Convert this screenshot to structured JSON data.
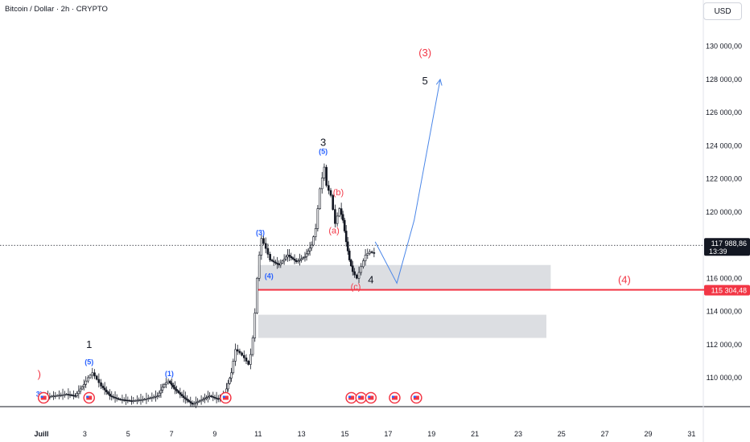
{
  "header": {
    "symbol_title": "Bitcoin / Dollar · 2h · CRYPTO",
    "currency_button": "USD"
  },
  "chart_data": {
    "type": "candlestick",
    "y_ticks": [
      "110 000,00",
      "112 000,00",
      "114 000,00",
      "116 000,00",
      "118 000,00",
      "120 000,00",
      "122 000,00",
      "124 000,00",
      "126 000,00",
      "128 000,00",
      "130 000,00"
    ],
    "y_tick_values": [
      110000,
      112000,
      114000,
      116000,
      118000,
      120000,
      122000,
      124000,
      126000,
      128000,
      130000
    ],
    "x_ticks": [
      "Juill",
      "3",
      "5",
      "7",
      "9",
      "11",
      "13",
      "15",
      "17",
      "19",
      "21",
      "23",
      "25",
      "27",
      "29",
      "31"
    ],
    "x_tick_days": [
      1,
      3,
      5,
      7,
      9,
      11,
      13,
      15,
      17,
      19,
      21,
      23,
      25,
      27,
      29,
      31
    ],
    "current_price": {
      "label": "117 988,86",
      "countdown": "13:39",
      "value": 117988.86
    },
    "support_level": {
      "label": "115 304,48",
      "value": 115304.48,
      "color": "#f23645"
    },
    "price_path": [
      [
        1.0,
        108800
      ],
      [
        1.6,
        108900
      ],
      [
        2.2,
        109000
      ],
      [
        2.6,
        108900
      ],
      [
        3.0,
        109600
      ],
      [
        3.2,
        110000
      ],
      [
        3.4,
        110300
      ],
      [
        3.6,
        109900
      ],
      [
        3.8,
        109500
      ],
      [
        4.2,
        108900
      ],
      [
        4.6,
        108700
      ],
      [
        5.2,
        108600
      ],
      [
        5.8,
        108700
      ],
      [
        6.4,
        108900
      ],
      [
        6.7,
        109600
      ],
      [
        6.9,
        109800
      ],
      [
        7.2,
        109300
      ],
      [
        7.6,
        108800
      ],
      [
        8.0,
        108400
      ],
      [
        8.5,
        108700
      ],
      [
        8.8,
        108900
      ],
      [
        9.2,
        108700
      ],
      [
        9.5,
        109000
      ],
      [
        9.8,
        110300
      ],
      [
        10.0,
        111700
      ],
      [
        10.2,
        111500
      ],
      [
        10.4,
        111200
      ],
      [
        10.6,
        110800
      ],
      [
        10.7,
        111400
      ],
      [
        10.8,
        112400
      ],
      [
        10.9,
        113900
      ],
      [
        11.0,
        116000
      ],
      [
        11.1,
        117400
      ],
      [
        11.2,
        118400
      ],
      [
        11.4,
        117800
      ],
      [
        11.6,
        117100
      ],
      [
        12.0,
        116800
      ],
      [
        12.4,
        117400
      ],
      [
        12.8,
        117000
      ],
      [
        13.2,
        117300
      ],
      [
        13.5,
        118000
      ],
      [
        13.7,
        119000
      ],
      [
        13.9,
        121400
      ],
      [
        14.1,
        122700
      ],
      [
        14.2,
        121600
      ],
      [
        14.4,
        121000
      ],
      [
        14.6,
        119300
      ],
      [
        14.8,
        120200
      ],
      [
        14.95,
        119500
      ],
      [
        15.1,
        118200
      ],
      [
        15.25,
        117100
      ],
      [
        15.4,
        116400
      ],
      [
        15.6,
        116000
      ],
      [
        15.8,
        116700
      ],
      [
        16.0,
        117400
      ],
      [
        16.2,
        117600
      ],
      [
        16.4,
        117500
      ]
    ],
    "zones": [
      {
        "day_from": 11.0,
        "day_to": 24.5,
        "price_from": 115300,
        "price_to": 116800
      },
      {
        "day_from": 11.0,
        "day_to": 24.3,
        "price_from": 112400,
        "price_to": 113800
      }
    ],
    "projection": {
      "color": "#4a86e8",
      "points": [
        [
          16.4,
          118200
        ],
        [
          17.4,
          115700
        ],
        [
          18.2,
          119500
        ],
        [
          19.4,
          128000
        ]
      ]
    },
    "labels": [
      {
        "text": "1",
        "day": 3.2,
        "price": 111800,
        "color": "#131722",
        "size": 13
      },
      {
        "text": "(5)",
        "day": 3.2,
        "price": 110800,
        "color": "#2962ff",
        "size": 9
      },
      {
        "text": "(1)",
        "day": 6.9,
        "price": 110100,
        "color": "#2962ff",
        "size": 9
      },
      {
        "text": "(3)",
        "day": 11.1,
        "price": 118600,
        "color": "#2962ff",
        "size": 9
      },
      {
        "text": "(4)",
        "day": 11.5,
        "price": 116000,
        "color": "#2962ff",
        "size": 9
      },
      {
        "text": "3",
        "day": 14.0,
        "price": 124000,
        "color": "#131722",
        "size": 13
      },
      {
        "text": "(5)",
        "day": 14.0,
        "price": 123500,
        "color": "#2962ff",
        "size": 9
      },
      {
        "text": "(b)",
        "day": 14.7,
        "price": 121000,
        "color": "#f23645",
        "size": 11
      },
      {
        "text": "(a)",
        "day": 14.5,
        "price": 118700,
        "color": "#f23645",
        "size": 11
      },
      {
        "text": "(c)",
        "day": 15.5,
        "price": 115300,
        "color": "#f23645",
        "size": 11
      },
      {
        "text": "4",
        "day": 16.2,
        "price": 115700,
        "color": "#131722",
        "size": 13
      },
      {
        "text": "(3)",
        "day": 18.7,
        "price": 129400,
        "color": "#f23645",
        "size": 13
      },
      {
        "text": "5",
        "day": 18.7,
        "price": 127700,
        "color": "#131722",
        "size": 13
      },
      {
        "text": "(4)",
        "day": 27.9,
        "price": 115700,
        "color": "#f23645",
        "size": 13
      },
      {
        "text": ")",
        "day": 0.9,
        "price": 110000,
        "color": "#f23645",
        "size": 13
      },
      {
        "text": "3)",
        "day": 0.9,
        "price": 108850,
        "color": "#2962ff",
        "size": 9
      }
    ],
    "event_markers": [
      3.2,
      1.1,
      9.5,
      15.3,
      15.75,
      16.2,
      17.3,
      18.3
    ],
    "grid": false
  }
}
